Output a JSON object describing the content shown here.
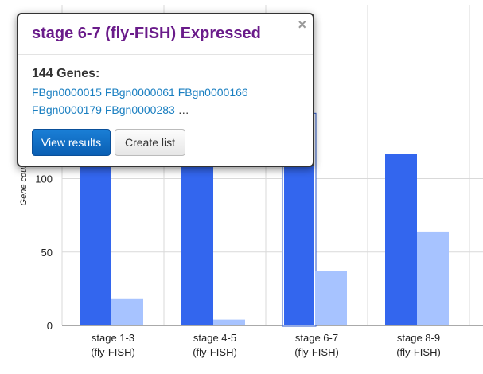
{
  "chart_data": {
    "type": "bar",
    "ylabel": "Gene count",
    "ylim": [
      0,
      130
    ],
    "yticks": [
      0,
      50,
      100
    ],
    "categories": [
      [
        "stage 1-3",
        "(fly-FISH)"
      ],
      [
        "stage 4-5",
        "(fly-FISH)"
      ],
      [
        "stage 6-7",
        "(fly-FISH)"
      ],
      [
        "stage 8-9",
        "(fly-FISH)"
      ]
    ],
    "series": [
      {
        "values": [
          130,
          130,
          144,
          117
        ],
        "color": "#3366ee"
      },
      {
        "values": [
          18,
          4,
          37,
          64
        ],
        "color": "#a7c3ff"
      }
    ],
    "highlighted": {
      "series": 0,
      "index": 2
    }
  },
  "popup": {
    "title": "stage 6-7 (fly-FISH) Expressed",
    "close_glyph": "×",
    "count_label": "144 Genes:",
    "genes_line1": [
      "FBgn0000015",
      "FBgn0000061",
      "FBgn0000166"
    ],
    "genes_line2": [
      "FBgn0000179",
      "FBgn0000283"
    ],
    "ellipsis": "…",
    "view_button": "View results",
    "list_button": "Create list"
  }
}
